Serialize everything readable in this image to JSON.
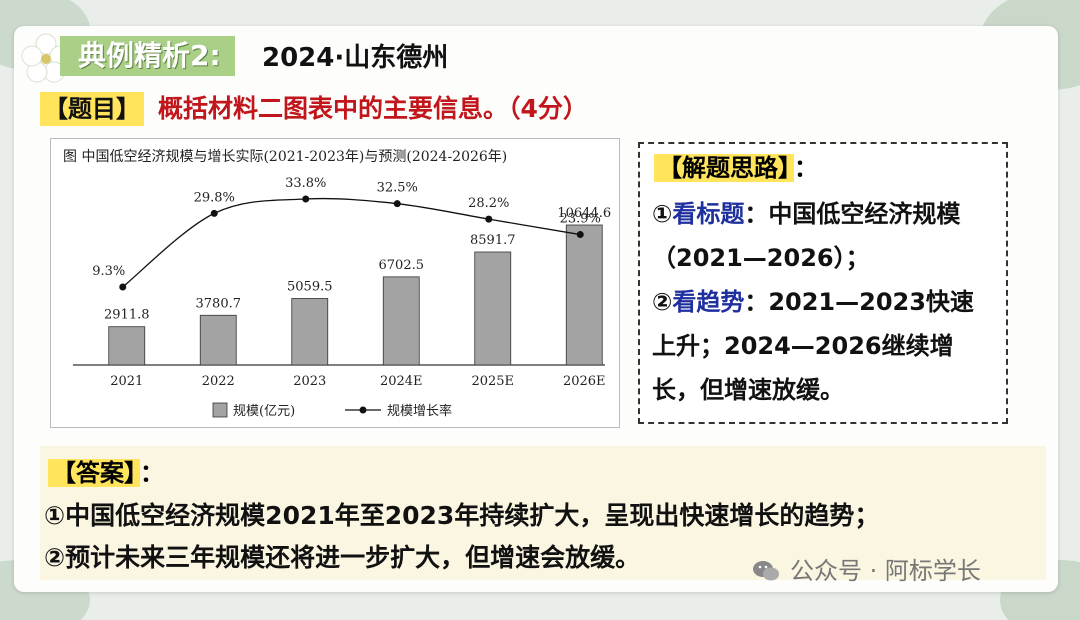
{
  "header": {
    "badge": "典例精析2:",
    "source": "2024·山东德州"
  },
  "question": {
    "label": "【题目】",
    "text": "概括材料二图表中的主要信息。（4分）"
  },
  "tips": {
    "title": "【解题思路】",
    "colon": "：",
    "item1_num": "①",
    "item1_key": "看标题",
    "item1_text": "：中国低空经济规模（2021—2026）；",
    "item2_num": "②",
    "item2_key": "看趋势",
    "item2_text": "：2021—2023快速上升；2024—2026继续增长，但增速放缓。"
  },
  "answer": {
    "label": "【答案】",
    "colon": "：",
    "line1": "①中国低空经济规模2021年至2023年持续扩大，呈现出快速增长的趋势；",
    "line2": "②预计未来三年规模还将进一步扩大，但增速会放缓。"
  },
  "watermark": {
    "text": "公众号 · 阿标学长",
    "icon": "wechat-icon"
  },
  "chart_data": {
    "type": "bar",
    "title": "图  中国低空经济规模与增长实际(2021-2023年)与预测(2024-2026年)",
    "categories": [
      "2021",
      "2022",
      "2023",
      "2024E",
      "2025E",
      "2026E"
    ],
    "series": [
      {
        "name": "规模(亿元)",
        "type": "bar",
        "values": [
          2911.8,
          3780.7,
          5059.5,
          6702.5,
          8591.7,
          10644.6
        ],
        "labels": [
          "2911.8",
          "3780.7",
          "5059.5",
          "6702.5",
          "8591.7",
          "10644.6"
        ],
        "color": "#a3a3a3"
      },
      {
        "name": "规模增长率",
        "type": "line",
        "values": [
          9.3,
          29.8,
          33.8,
          32.5,
          28.2,
          23.9
        ],
        "labels": [
          "9.3%",
          "29.8%",
          "33.8%",
          "32.5%",
          "28.2%",
          "23.9%"
        ],
        "color": "#111111"
      }
    ],
    "legend": "bottom",
    "grid": false
  }
}
